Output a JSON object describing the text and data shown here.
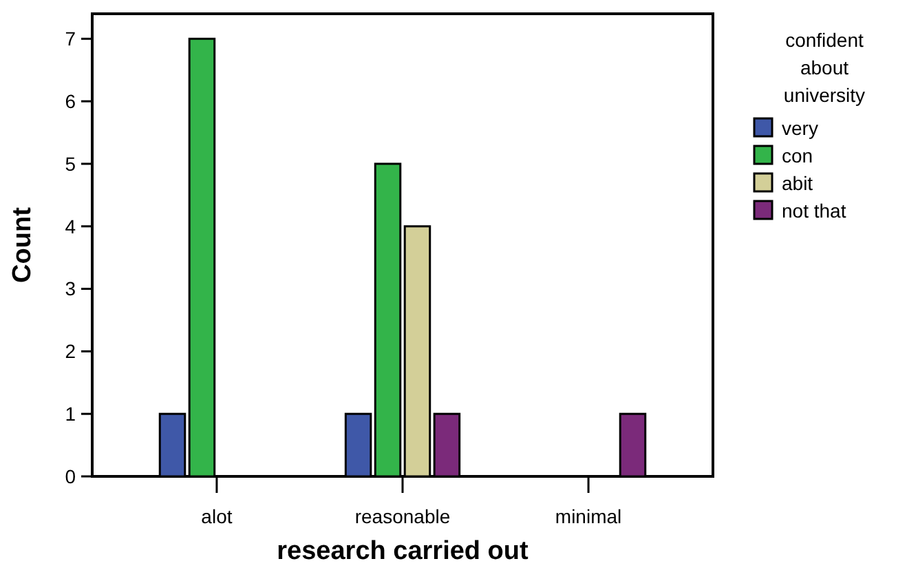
{
  "chart_data": {
    "type": "bar",
    "xlabel": "research carried out",
    "ylabel": "Count",
    "legend_title": "confident about university",
    "categories": [
      "alot",
      "reasonable",
      "minimal"
    ],
    "series": [
      {
        "name": "very",
        "color": "#3f58a8",
        "values": [
          1,
          1,
          0
        ]
      },
      {
        "name": "con",
        "color": "#33b44a",
        "values": [
          7,
          5,
          0
        ]
      },
      {
        "name": "abit",
        "color": "#d3cf98",
        "values": [
          0,
          4,
          0
        ]
      },
      {
        "name": "not that",
        "color": "#7b2a7a",
        "values": [
          0,
          1,
          1
        ]
      }
    ],
    "ylim": [
      0,
      7.4
    ],
    "yticks": [
      0,
      1,
      2,
      3,
      4,
      5,
      6,
      7
    ],
    "grid": false,
    "legend": "right"
  }
}
